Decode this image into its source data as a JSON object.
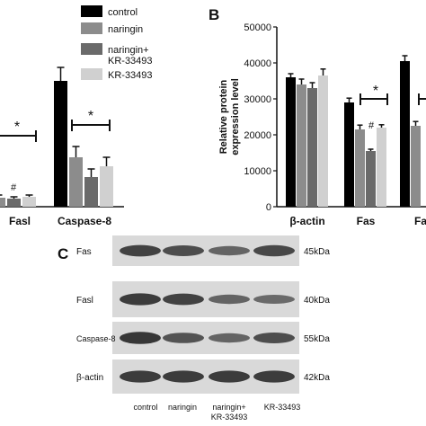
{
  "colors": {
    "control": "#000000",
    "naringin": "#8c8c8c",
    "naringin_kr": "#6a6a6a",
    "kr": "#d0d0d0",
    "error": "#111111"
  },
  "legend": {
    "items": [
      {
        "key": "control",
        "lines": [
          "control"
        ]
      },
      {
        "key": "naringin",
        "lines": [
          "naringin"
        ]
      },
      {
        "key": "naringin_kr",
        "lines": [
          "naringin+",
          "KR-33493"
        ]
      },
      {
        "key": "kr",
        "lines": [
          "KR-33493"
        ]
      }
    ]
  },
  "chart_data": [
    {
      "panel": "A",
      "type": "bar",
      "categories": [
        "Fasl",
        "Caspase-8"
      ],
      "series": [
        {
          "name": "control",
          "values": [
            null,
            14
          ]
        },
        {
          "name": "naringin",
          "values": [
            1.0,
            5.5
          ]
        },
        {
          "name": "naringin+KR-33493",
          "values": [
            0.9,
            3.3
          ]
        },
        {
          "name": "KR-33493",
          "values": [
            1.1,
            4.5
          ]
        }
      ],
      "errors": [
        [
          null,
          1.5
        ],
        [
          0.3,
          1.2
        ],
        [
          0.2,
          0.9
        ],
        [
          0.2,
          1.0
        ]
      ],
      "ylim": [
        0,
        20
      ],
      "annotations": [
        {
          "text": "*",
          "category": "Fasl"
        },
        {
          "text": "#",
          "category": "Fasl"
        },
        {
          "text": "*",
          "category": "Caspase-8"
        }
      ]
    },
    {
      "panel": "B",
      "type": "bar",
      "ylabel": "Relative protein expression level",
      "ylim": [
        0,
        50000
      ],
      "yticks": [
        "0",
        "10000",
        "20000",
        "30000",
        "40000",
        "50000"
      ],
      "categories": [
        "β-actin",
        "Fas",
        "Fa"
      ],
      "series": [
        {
          "name": "control",
          "values": [
            36000,
            29000,
            40500
          ]
        },
        {
          "name": "naringin",
          "values": [
            34000,
            21500,
            22500
          ]
        },
        {
          "name": "naringin+KR-33493",
          "values": [
            33000,
            15500,
            null
          ]
        },
        {
          "name": "KR-33493",
          "values": [
            36500,
            22000,
            null
          ]
        }
      ],
      "errors": [
        [
          1000,
          1200,
          1500
        ],
        [
          1500,
          1200,
          1200
        ],
        [
          1500,
          500,
          null
        ],
        [
          1800,
          800,
          null
        ]
      ],
      "annotations": [
        {
          "text": "*",
          "category": "Fas"
        },
        {
          "text": "#",
          "category": "Fas"
        }
      ]
    }
  ],
  "panels": {
    "B_label": "B",
    "C_label": "C"
  },
  "blot": {
    "rows": [
      {
        "label": "Fas",
        "kda": "45kDa",
        "intensity": [
          0.85,
          0.75,
          0.55,
          0.8
        ]
      },
      {
        "label": "Fasl",
        "kda": "40kDa",
        "intensity": [
          0.9,
          0.85,
          0.55,
          0.5
        ]
      },
      {
        "label": "Caspase-8",
        "kda": "55kDa",
        "intensity": [
          0.95,
          0.7,
          0.55,
          0.75
        ]
      },
      {
        "label": "β-actin",
        "kda": "42kDa",
        "intensity": [
          0.9,
          0.9,
          0.9,
          0.9
        ]
      }
    ],
    "lanes": [
      {
        "lines": [
          "control"
        ]
      },
      {
        "lines": [
          "naringin"
        ]
      },
      {
        "lines": [
          "naringin+",
          "KR-33493"
        ]
      },
      {
        "lines": [
          "KR-33493"
        ]
      }
    ]
  }
}
